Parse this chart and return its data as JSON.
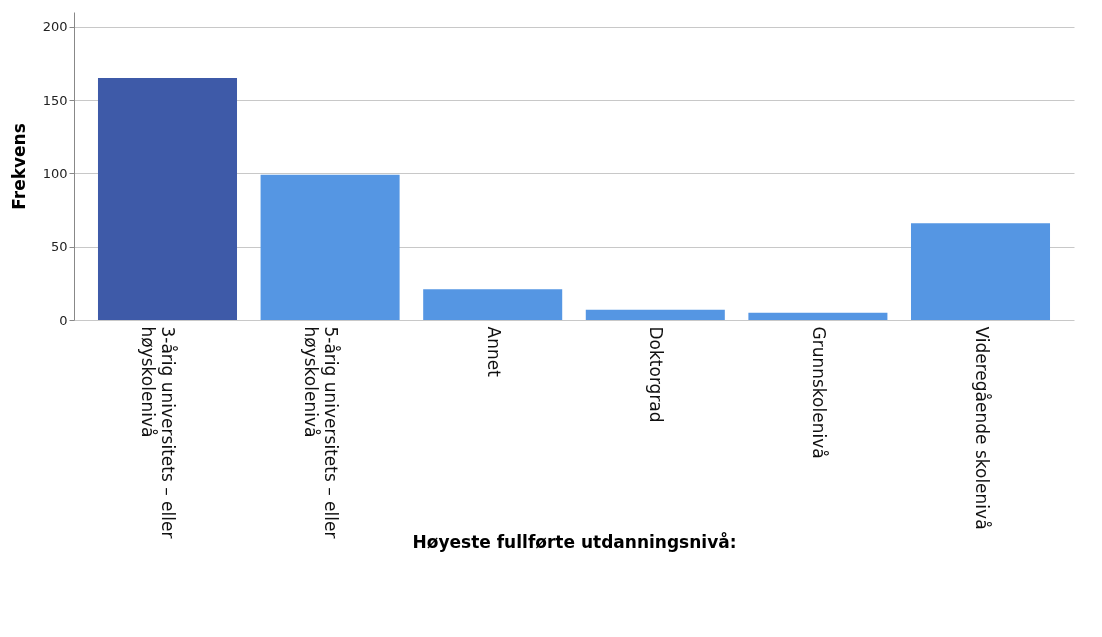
{
  "chart_data": {
    "type": "bar",
    "xlabel": "Høyeste fullførte utdanningsnivå:",
    "ylabel": "Frekvens",
    "categories": [
      "3-årig universitets – eller høyskolenivå",
      "5-årig universitets – eller høyskolenivå",
      "Annet",
      "Doktorgrad",
      "Grunnskolenivå",
      "Videregående skolenivå"
    ],
    "values": [
      165,
      99,
      21,
      7,
      5,
      66
    ],
    "colors": [
      "#3e5aa8",
      "#5596e3",
      "#5596e3",
      "#5596e3",
      "#5596e3",
      "#5596e3"
    ],
    "ylim": [
      0,
      210
    ],
    "yticks": [
      0,
      50,
      100,
      150,
      200
    ],
    "grid": "y"
  }
}
